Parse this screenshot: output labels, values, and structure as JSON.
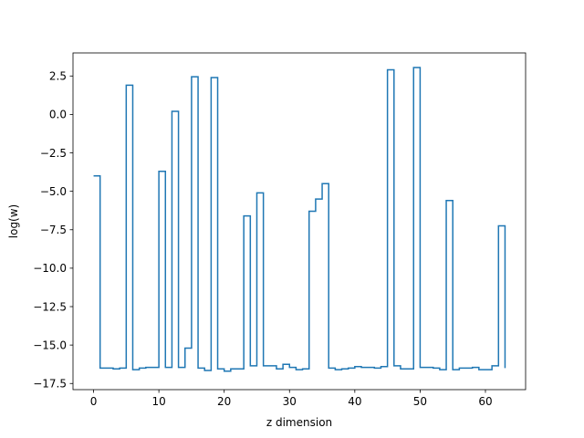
{
  "chart_data": {
    "type": "line",
    "drawstyle": "steps-post",
    "xlabel": "z dimension",
    "ylabel": "log(w)",
    "xlim": [
      -3.15,
      66.15
    ],
    "ylim": [
      -17.9,
      4.0
    ],
    "xticks": [
      0,
      10,
      20,
      30,
      40,
      50,
      60
    ],
    "yticks": [
      -17.5,
      -15.0,
      -12.5,
      -10.0,
      -7.5,
      -5.0,
      -2.5,
      0.0,
      2.5
    ],
    "ytick_labels": [
      "−17.5",
      "−15.0",
      "−12.5",
      "−10.0",
      "−7.5",
      "−5.0",
      "−2.5",
      "0.0",
      "2.5"
    ],
    "grid": false,
    "line_color": "#1f77b4",
    "series": [
      {
        "x": [
          0,
          1,
          2,
          3,
          4,
          5,
          6,
          7,
          8,
          9,
          10,
          11,
          12,
          13,
          14,
          15,
          16,
          17,
          18,
          19,
          20,
          21,
          22,
          23,
          24,
          25,
          26,
          27,
          28,
          29,
          30,
          31,
          32,
          33,
          34,
          35,
          36,
          37,
          38,
          39,
          40,
          41,
          42,
          43,
          44,
          45,
          46,
          47,
          48,
          49,
          50,
          51,
          52,
          53,
          54,
          55,
          56,
          57,
          58,
          59,
          60,
          61,
          62,
          63
        ],
        "values": [
          -4.0,
          -16.5,
          -16.5,
          -16.55,
          -16.5,
          1.9,
          -16.6,
          -16.5,
          -16.45,
          -16.45,
          -3.7,
          -16.45,
          0.2,
          -16.45,
          -15.2,
          2.45,
          -16.5,
          -16.65,
          2.4,
          -16.55,
          -16.7,
          -16.55,
          -16.55,
          -6.6,
          -16.35,
          -5.1,
          -16.35,
          -16.35,
          -16.55,
          -16.25,
          -16.45,
          -16.6,
          -16.55,
          -6.3,
          -5.5,
          -4.5,
          -16.5,
          -16.6,
          -16.55,
          -16.5,
          -16.4,
          -16.45,
          -16.45,
          -16.5,
          -16.4,
          2.9,
          -16.35,
          -16.55,
          -16.55,
          3.05,
          -16.45,
          -16.45,
          -16.5,
          -16.6,
          -5.6,
          -16.6,
          -16.5,
          -16.5,
          -16.45,
          -16.6,
          -16.6,
          -16.35,
          -7.25,
          -16.5
        ]
      }
    ]
  }
}
